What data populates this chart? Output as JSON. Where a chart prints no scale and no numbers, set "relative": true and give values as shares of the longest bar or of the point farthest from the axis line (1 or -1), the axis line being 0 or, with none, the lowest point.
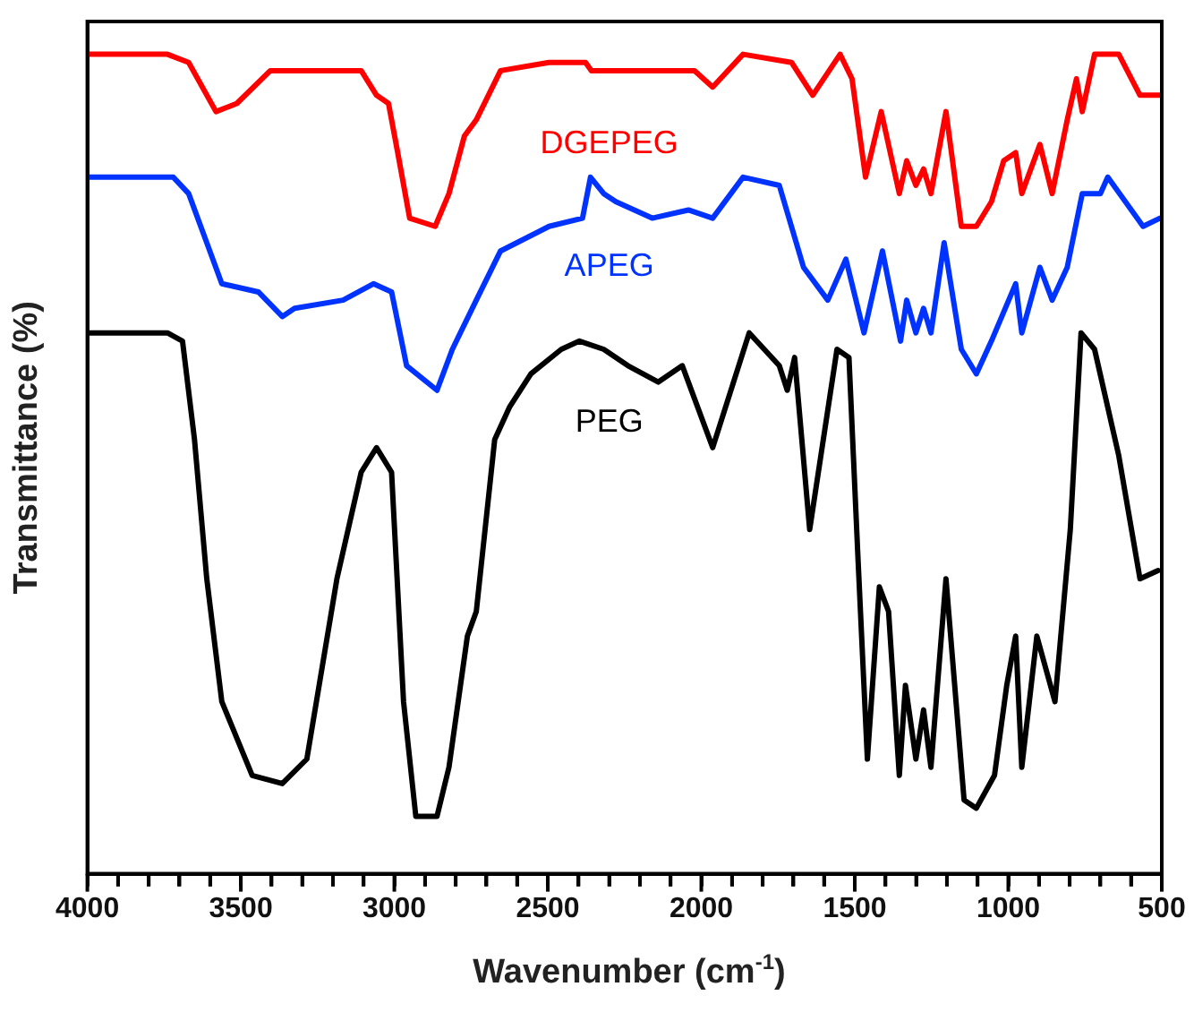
{
  "chart_data": {
    "type": "line",
    "xlabel": "Wavenumber (cm$^{-1}$)",
    "ylabel": "Transmittance (%)",
    "relative": true,
    "tick_labels": "x",
    "grid": false,
    "legend": false,
    "marker": "none",
    "line_style": "solid",
    "xlim": [
      4000,
      500
    ],
    "xticks": [
      4000,
      {
        "value": 3900,
        "label": null
      },
      {
        "value": 3800,
        "label": null
      },
      {
        "value": 3700,
        "label": null
      },
      {
        "value": 3600,
        "label": null
      },
      3500,
      {
        "value": 3400,
        "label": null
      },
      {
        "value": 3300,
        "label": null
      },
      {
        "value": 3200,
        "label": null
      },
      {
        "value": 3100,
        "label": null
      },
      3000,
      {
        "value": 2900,
        "label": null
      },
      {
        "value": 2800,
        "label": null
      },
      {
        "value": 2700,
        "label": null
      },
      {
        "value": 2600,
        "label": null
      },
      2500,
      {
        "value": 2400,
        "label": null
      },
      {
        "value": 2300,
        "label": null
      },
      {
        "value": 2200,
        "label": null
      },
      {
        "value": 2100,
        "label": null
      },
      2000,
      {
        "value": 1900,
        "label": null
      },
      {
        "value": 1800,
        "label": null
      },
      {
        "value": 1700,
        "label": null
      },
      {
        "value": 1600,
        "label": null
      },
      1500,
      {
        "value": 1400,
        "label": null
      },
      {
        "value": 1300,
        "label": null
      },
      {
        "value": 1200,
        "label": null
      },
      {
        "value": 1100,
        "label": null
      },
      1000,
      {
        "value": 900,
        "label": null
      },
      {
        "value": 800,
        "label": null
      },
      {
        "value": 700,
        "label": null
      },
      {
        "value": 600,
        "label": null
      },
      500
    ],
    "series": [
      {
        "name": "DGEPEG",
        "color": "#ff0000",
        "x": [
          3996,
          3781,
          3739,
          3670,
          3581,
          3513,
          3404,
          3246,
          3108,
          3058,
          3019,
          2989,
          2950,
          2867,
          2822,
          2772,
          2733,
          2654,
          2496,
          2377,
          2358,
          2259,
          2022,
          1963,
          1864,
          1706,
          1637,
          1548,
          1509,
          1465,
          1414,
          1355,
          1331,
          1301,
          1276,
          1252,
          1203,
          1153,
          1104,
          1055,
          1015,
          976,
          956,
          897,
          857,
          808,
          778,
          759,
          719,
          640,
          571,
          506
        ],
        "values": [
          1.0,
          1.0,
          1.0,
          0.99,
          0.93,
          0.94,
          0.98,
          0.98,
          0.98,
          0.95,
          0.94,
          0.88,
          0.8,
          0.79,
          0.83,
          0.9,
          0.92,
          0.98,
          0.99,
          0.99,
          0.98,
          0.98,
          0.98,
          0.96,
          1.0,
          0.99,
          0.95,
          1.0,
          0.97,
          0.85,
          0.93,
          0.83,
          0.87,
          0.84,
          0.86,
          0.83,
          0.93,
          0.79,
          0.79,
          0.82,
          0.87,
          0.88,
          0.83,
          0.89,
          0.83,
          0.92,
          0.97,
          0.93,
          1.0,
          1.0,
          0.95,
          0.95
        ]
      },
      {
        "name": "APEG",
        "color": "#0033ff",
        "x": [
          3996,
          3720,
          3670,
          3611,
          3562,
          3443,
          3365,
          3325,
          3167,
          3068,
          3009,
          2960,
          2861,
          2811,
          2733,
          2654,
          2496,
          2387,
          2361,
          2318,
          2278,
          2160,
          2042,
          1963,
          1864,
          1746,
          1667,
          1588,
          1529,
          1470,
          1410,
          1351,
          1331,
          1301,
          1276,
          1252,
          1209,
          1153,
          1104,
          1055,
          976,
          956,
          897,
          857,
          808,
          759,
          700,
          676,
          561,
          506
        ],
        "values": [
          0.85,
          0.85,
          0.83,
          0.77,
          0.72,
          0.71,
          0.68,
          0.69,
          0.7,
          0.72,
          0.71,
          0.62,
          0.59,
          0.64,
          0.7,
          0.76,
          0.79,
          0.8,
          0.85,
          0.83,
          0.82,
          0.8,
          0.81,
          0.8,
          0.85,
          0.84,
          0.74,
          0.7,
          0.75,
          0.66,
          0.76,
          0.65,
          0.7,
          0.66,
          0.69,
          0.66,
          0.77,
          0.64,
          0.61,
          0.65,
          0.72,
          0.66,
          0.74,
          0.7,
          0.74,
          0.83,
          0.83,
          0.85,
          0.79,
          0.8
        ]
      },
      {
        "name": "PEG",
        "color": "#000000",
        "x": [
          3996,
          3739,
          3690,
          3651,
          3611,
          3562,
          3463,
          3365,
          3285,
          3187,
          3108,
          3058,
          3009,
          2970,
          2930,
          2861,
          2822,
          2762,
          2733,
          2673,
          2624,
          2555,
          2456,
          2397,
          2318,
          2239,
          2140,
          2062,
          1963,
          1844,
          1746,
          1720,
          1696,
          1647,
          1558,
          1519,
          1489,
          1459,
          1420,
          1390,
          1355,
          1335,
          1301,
          1276,
          1252,
          1203,
          1144,
          1104,
          1045,
          1005,
          976,
          956,
          907,
          848,
          798,
          763,
          719,
          640,
          571,
          512
        ],
        "values": [
          0.66,
          0.66,
          0.65,
          0.53,
          0.36,
          0.21,
          0.12,
          0.11,
          0.14,
          0.36,
          0.49,
          0.52,
          0.49,
          0.21,
          0.07,
          0.07,
          0.13,
          0.29,
          0.32,
          0.53,
          0.57,
          0.61,
          0.64,
          0.65,
          0.64,
          0.62,
          0.6,
          0.62,
          0.52,
          0.66,
          0.62,
          0.59,
          0.63,
          0.42,
          0.64,
          0.63,
          0.38,
          0.14,
          0.35,
          0.32,
          0.12,
          0.23,
          0.14,
          0.2,
          0.13,
          0.36,
          0.09,
          0.08,
          0.12,
          0.23,
          0.29,
          0.13,
          0.29,
          0.21,
          0.42,
          0.66,
          0.64,
          0.51,
          0.36,
          0.37
        ]
      }
    ]
  }
}
